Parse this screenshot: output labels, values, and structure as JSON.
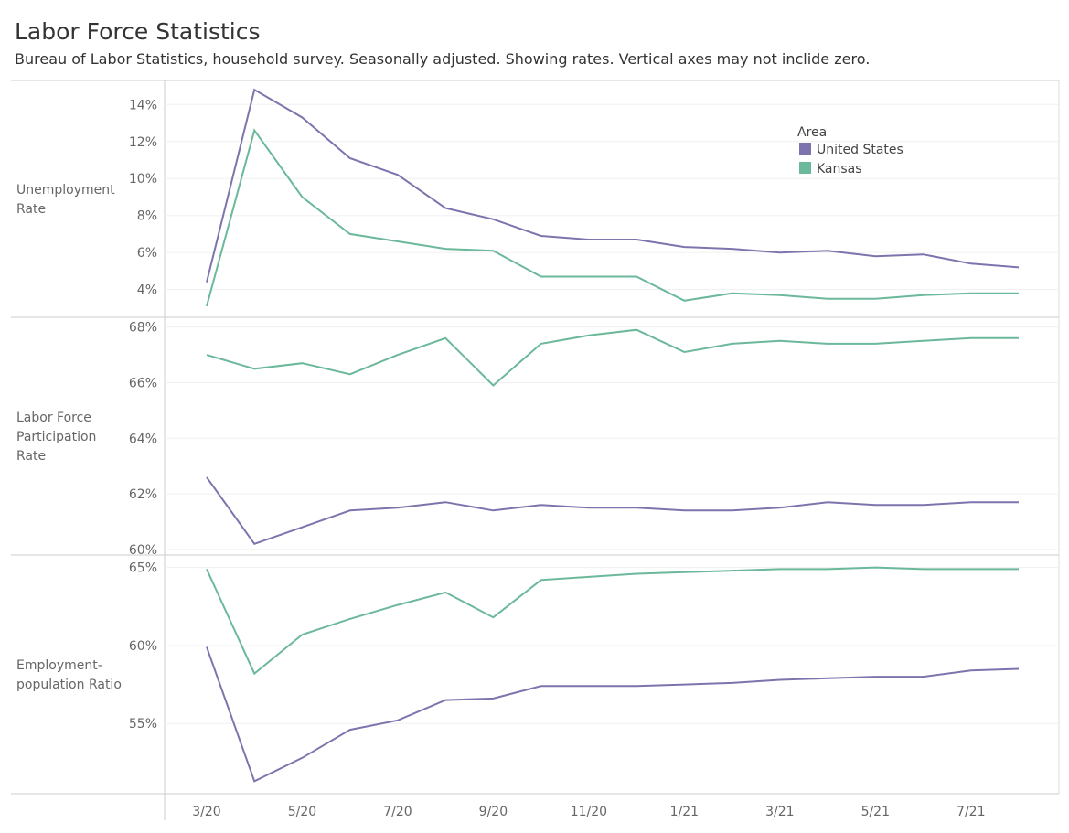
{
  "title": "Labor Force Statistics",
  "subtitle": "Bureau of Labor Statistics, household survey. Seasonally adjusted. Showing rates. Vertical axes may not inclide zero.",
  "legend": {
    "title": "Area",
    "position": "top-right of first panel"
  },
  "colors": {
    "United States": "#7e74ad",
    "Kansas": "#6bb89a"
  },
  "x_tick_labels": [
    "3/20",
    "5/20",
    "7/20",
    "9/20",
    "11/20",
    "1/21",
    "3/21",
    "5/21",
    "7/21"
  ],
  "chart_data": [
    {
      "type": "line",
      "ylabel": [
        "Unemployment",
        "Rate"
      ],
      "x": [
        "3/20",
        "4/20",
        "5/20",
        "6/20",
        "7/20",
        "8/20",
        "9/20",
        "10/20",
        "11/20",
        "12/20",
        "1/21",
        "2/21",
        "3/21",
        "4/21",
        "5/21",
        "6/21",
        "7/21",
        "8/21"
      ],
      "yticks": [
        4,
        6,
        8,
        10,
        12,
        14
      ],
      "ylim": [
        2.5,
        15.3
      ],
      "grid": true,
      "series": [
        {
          "name": "United States",
          "values": [
            4.4,
            14.8,
            13.3,
            11.1,
            10.2,
            8.4,
            7.8,
            6.9,
            6.7,
            6.7,
            6.3,
            6.2,
            6.0,
            6.1,
            5.8,
            5.9,
            5.4,
            5.2
          ]
        },
        {
          "name": "Kansas",
          "values": [
            3.1,
            12.6,
            9.0,
            7.0,
            6.6,
            6.2,
            6.1,
            4.7,
            4.7,
            4.7,
            3.4,
            3.8,
            3.7,
            3.5,
            3.5,
            3.7,
            3.8,
            3.8
          ]
        }
      ]
    },
    {
      "type": "line",
      "ylabel": [
        "Labor Force",
        "Participation",
        "Rate"
      ],
      "x": [
        "3/20",
        "4/20",
        "5/20",
        "6/20",
        "7/20",
        "8/20",
        "9/20",
        "10/20",
        "11/20",
        "12/20",
        "1/21",
        "2/21",
        "3/21",
        "4/21",
        "5/21",
        "6/21",
        "7/21",
        "8/21"
      ],
      "yticks": [
        60,
        62,
        64,
        66,
        68
      ],
      "ylim": [
        59.8,
        68.35
      ],
      "grid": true,
      "series": [
        {
          "name": "United States",
          "values": [
            62.6,
            60.2,
            60.8,
            61.4,
            61.5,
            61.7,
            61.4,
            61.6,
            61.5,
            61.5,
            61.4,
            61.4,
            61.5,
            61.7,
            61.6,
            61.6,
            61.7,
            61.7
          ]
        },
        {
          "name": "Kansas",
          "values": [
            67.0,
            66.5,
            66.7,
            66.3,
            67.0,
            67.6,
            65.9,
            67.4,
            67.7,
            67.9,
            67.1,
            67.4,
            67.5,
            67.4,
            67.4,
            67.5,
            67.6,
            67.6
          ]
        }
      ]
    },
    {
      "type": "line",
      "ylabel": [
        "Employment-",
        "population Ratio"
      ],
      "x": [
        "3/20",
        "4/20",
        "5/20",
        "6/20",
        "7/20",
        "8/20",
        "9/20",
        "10/20",
        "11/20",
        "12/20",
        "1/21",
        "2/21",
        "3/21",
        "4/21",
        "5/21",
        "6/21",
        "7/21",
        "8/21"
      ],
      "yticks": [
        55,
        60,
        65
      ],
      "ylim": [
        50.5,
        65.8
      ],
      "grid": true,
      "series": [
        {
          "name": "United States",
          "values": [
            59.9,
            51.3,
            52.8,
            54.6,
            55.2,
            56.5,
            56.6,
            57.4,
            57.4,
            57.4,
            57.5,
            57.6,
            57.8,
            57.9,
            58.0,
            58.0,
            58.4,
            58.5
          ]
        },
        {
          "name": "Kansas",
          "values": [
            64.9,
            58.2,
            60.7,
            61.7,
            62.6,
            63.4,
            61.8,
            64.2,
            64.4,
            64.6,
            64.7,
            64.8,
            64.9,
            64.9,
            65.0,
            64.9,
            64.9,
            64.9
          ]
        }
      ]
    }
  ]
}
